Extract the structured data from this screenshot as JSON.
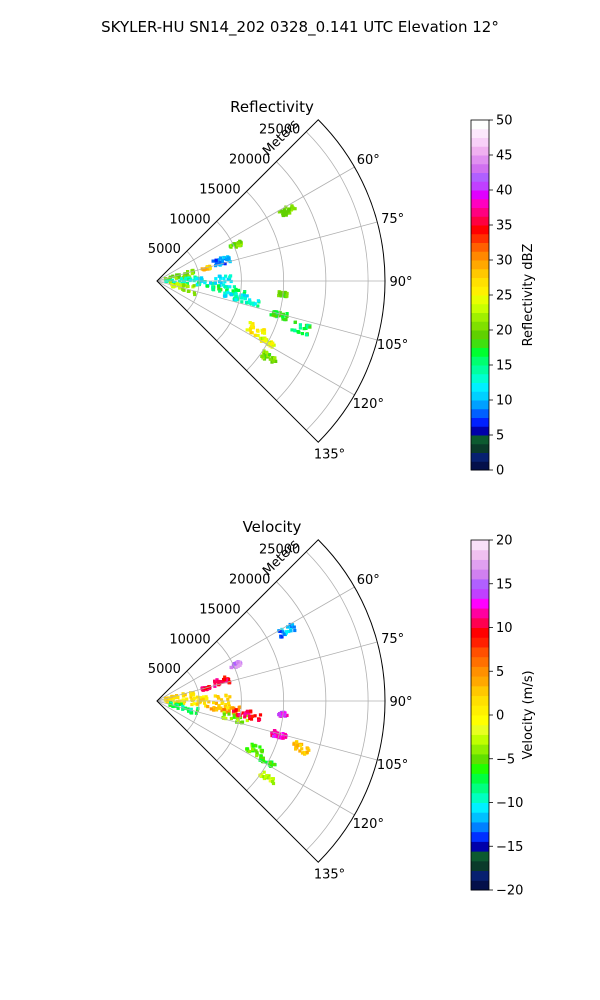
{
  "figure": {
    "suptitle": "SKYLER-HU  SN14_202  0328_0.141 UTC Elevation 12°"
  },
  "chart_data": [
    {
      "type": "polar-sector",
      "title": "Reflectivity",
      "range_axis_label": "Meters",
      "range_ticks": [
        5000,
        10000,
        15000,
        20000,
        25000
      ],
      "range_tick_labels": [
        "5000",
        "10000",
        "15000",
        "20000",
        "25000"
      ],
      "range_max": 27000,
      "angle_range_deg": [
        45,
        135
      ],
      "angle_ticks_deg": [
        60,
        75,
        90,
        105,
        120,
        135
      ],
      "angle_tick_labels": [
        "60°",
        "75°",
        "90°",
        "105°",
        "120°",
        "135°"
      ],
      "grid": true,
      "colorbar": {
        "label": "Reflectivity dBZ",
        "min": 0,
        "max": 50,
        "ticks": [
          0,
          5,
          10,
          15,
          20,
          25,
          30,
          35,
          40,
          45,
          50
        ],
        "tick_labels": [
          "0",
          "5",
          "10",
          "15",
          "20",
          "25",
          "30",
          "35",
          "40",
          "45",
          "50"
        ],
        "colors": [
          "#04104a",
          "#072070",
          "#0a3a2a",
          "#0c5a30",
          "#0000aa",
          "#0020ff",
          "#0060ff",
          "#00a0ff",
          "#00d0ff",
          "#00f0ff",
          "#00ffd0",
          "#00ffa0",
          "#00ff70",
          "#00ff30",
          "#40e010",
          "#60d000",
          "#80e000",
          "#a0f000",
          "#c8ff00",
          "#e8ff00",
          "#fff000",
          "#ffe000",
          "#ffc800",
          "#ffa800",
          "#ff8800",
          "#ff6000",
          "#ff3000",
          "#ff0000",
          "#ff0040",
          "#ff0080",
          "#ff00c0",
          "#e000ff",
          "#c040ff",
          "#b060ff",
          "#d070f0",
          "#e090f0",
          "#f0b0f0",
          "#f8d0f8",
          "#fce8fc",
          "#ffffff"
        ]
      },
      "echo_regions": [
        {
          "r": [
            1000,
            4500
          ],
          "az": [
            72,
            84
          ],
          "v": 20
        },
        {
          "r": [
            1000,
            6000
          ],
          "az": [
            84,
            96
          ],
          "v": 14
        },
        {
          "r": [
            1500,
            5000
          ],
          "az": [
            97,
            110
          ],
          "v": 22
        },
        {
          "r": [
            5000,
            9000
          ],
          "az": [
            85,
            96
          ],
          "v": 12
        },
        {
          "r": [
            6000,
            10500
          ],
          "az": [
            94,
            100
          ],
          "v": 16
        },
        {
          "r": [
            8000,
            11000
          ],
          "az": [
            99,
            105
          ],
          "v": 12
        },
        {
          "r": [
            9000,
            12500
          ],
          "az": [
            101,
            104
          ],
          "v": 14
        },
        {
          "r": [
            12000,
            14500
          ],
          "az": [
            114,
            119
          ],
          "v": 26
        },
        {
          "r": [
            14000,
            16000
          ],
          "az": [
            118,
            120
          ],
          "v": 24
        },
        {
          "r": [
            15000,
            17000
          ],
          "az": [
            123,
            126
          ],
          "v": 20
        },
        {
          "r": [
            7000,
            9000
          ],
          "az": [
            70,
            76
          ],
          "v": 9
        },
        {
          "r": [
            9500,
            11000
          ],
          "az": [
            64,
            67
          ],
          "v": 20
        },
        {
          "r": [
            16500,
            18500
          ],
          "az": [
            60,
            63
          ],
          "v": 20
        },
        {
          "r": [
            5500,
            6500
          ],
          "az": [
            74,
            77
          ],
          "v": 28
        },
        {
          "r": [
            14000,
            16000
          ],
          "az": [
            104,
            107
          ],
          "v": 17
        },
        {
          "r": [
            17000,
            19000
          ],
          "az": [
            106,
            110
          ],
          "v": 16
        },
        {
          "r": [
            14500,
            15500
          ],
          "az": [
            95,
            97
          ],
          "v": 20
        }
      ]
    },
    {
      "type": "polar-sector",
      "title": "Velocity",
      "range_axis_label": "Meters",
      "range_ticks": [
        5000,
        10000,
        15000,
        20000,
        25000
      ],
      "range_tick_labels": [
        "5000",
        "10000",
        "15000",
        "20000",
        "25000"
      ],
      "range_max": 27000,
      "angle_range_deg": [
        45,
        135
      ],
      "angle_ticks_deg": [
        60,
        75,
        90,
        105,
        120,
        135
      ],
      "angle_tick_labels": [
        "60°",
        "75°",
        "90°",
        "105°",
        "120°",
        "135°"
      ],
      "grid": true,
      "colorbar": {
        "label": "Velocity (m/s)",
        "min": -20,
        "max": 20,
        "ticks": [
          -20,
          -15,
          -10,
          -5,
          0,
          5,
          10,
          15,
          20
        ],
        "tick_labels": [
          "−20",
          "−15",
          "−10",
          "−5",
          "0",
          "5",
          "10",
          "15",
          "20"
        ],
        "colors": [
          "#04104a",
          "#072070",
          "#0a3a2a",
          "#0c5a30",
          "#0000aa",
          "#0030ff",
          "#0080ff",
          "#00c0ff",
          "#00f0ff",
          "#00ffc0",
          "#00ff80",
          "#00ff40",
          "#20ff00",
          "#60e000",
          "#90f000",
          "#c0ff00",
          "#e8ff20",
          "#ffff00",
          "#fff000",
          "#ffe000",
          "#ffc800",
          "#ffa800",
          "#ff9000",
          "#ff7000",
          "#ff5000",
          "#ff2000",
          "#ff0000",
          "#ff0050",
          "#ff00a0",
          "#ff00ff",
          "#c040ff",
          "#b060ff",
          "#d080f0",
          "#e0a0f0",
          "#f0c0f0",
          "#f8e0f8"
        ]
      },
      "echo_regions": [
        {
          "r": [
            1000,
            4500
          ],
          "az": [
            72,
            84
          ],
          "v": 2
        },
        {
          "r": [
            1000,
            6000
          ],
          "az": [
            84,
            96
          ],
          "v": 1
        },
        {
          "r": [
            1500,
            5000
          ],
          "az": [
            97,
            110
          ],
          "v": -8
        },
        {
          "r": [
            5000,
            9000
          ],
          "az": [
            85,
            96
          ],
          "v": 2
        },
        {
          "r": [
            6000,
            10500
          ],
          "az": [
            94,
            100
          ],
          "v": 4
        },
        {
          "r": [
            8000,
            11000
          ],
          "az": [
            99,
            105
          ],
          "v": -4
        },
        {
          "r": [
            9000,
            12500
          ],
          "az": [
            96,
            101
          ],
          "v": 10
        },
        {
          "r": [
            12000,
            14500
          ],
          "az": [
            114,
            119
          ],
          "v": -5
        },
        {
          "r": [
            14000,
            16000
          ],
          "az": [
            118,
            120
          ],
          "v": -6
        },
        {
          "r": [
            15000,
            17000
          ],
          "az": [
            123,
            126
          ],
          "v": -3
        },
        {
          "r": [
            7000,
            9000
          ],
          "az": [
            70,
            76
          ],
          "v": 10
        },
        {
          "r": [
            9500,
            11000
          ],
          "az": [
            64,
            67
          ],
          "v": 16
        },
        {
          "r": [
            16500,
            18500
          ],
          "az": [
            60,
            63
          ],
          "v": -12
        },
        {
          "r": [
            5500,
            6500
          ],
          "az": [
            74,
            77
          ],
          "v": 11
        },
        {
          "r": [
            14000,
            16000
          ],
          "az": [
            104,
            107
          ],
          "v": 12
        },
        {
          "r": [
            17000,
            19000
          ],
          "az": [
            106,
            110
          ],
          "v": 3
        },
        {
          "r": [
            14500,
            15500
          ],
          "az": [
            95,
            97
          ],
          "v": 13
        }
      ]
    }
  ]
}
